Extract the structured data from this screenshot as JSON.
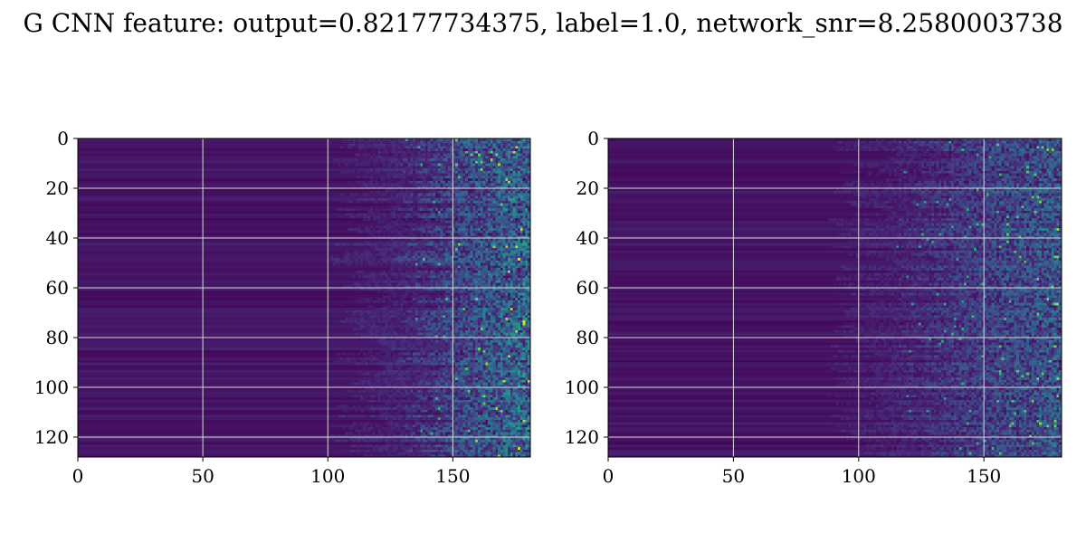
{
  "chart_data": {
    "title": "G CNN feature: output=0.82177734375, label=1.0, network_snr=8.2580003738",
    "panels": [
      {
        "type": "heatmap",
        "colormap": "viridis",
        "xlim": [
          0,
          181
        ],
        "ylim": [
          128,
          0
        ],
        "xticks": [
          0,
          50,
          100,
          150
        ],
        "yticks": [
          0,
          20,
          40,
          60,
          80,
          100,
          120
        ],
        "grid": true
      },
      {
        "type": "heatmap",
        "colormap": "viridis",
        "xlim": [
          0,
          181
        ],
        "ylim": [
          128,
          0
        ],
        "xticks": [
          0,
          50,
          100,
          150
        ],
        "yticks": [
          0,
          20,
          40,
          60,
          80,
          100,
          120
        ],
        "grid": true
      }
    ]
  }
}
